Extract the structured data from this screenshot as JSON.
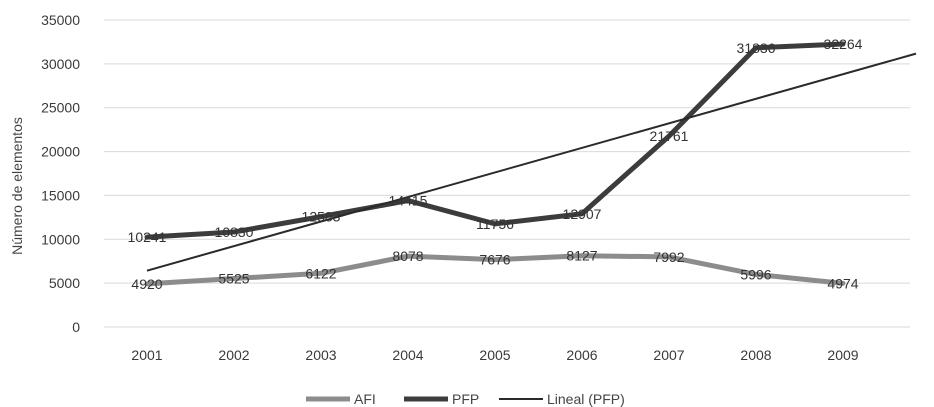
{
  "chart_data": {
    "type": "line",
    "categories": [
      "2001",
      "2002",
      "2003",
      "2004",
      "2005",
      "2006",
      "2007",
      "2008",
      "2009"
    ],
    "series": [
      {
        "name": "AFI",
        "values": [
          4920,
          5525,
          6122,
          8078,
          7676,
          8127,
          7992,
          5996,
          4974
        ],
        "color": "#8c8c8c"
      },
      {
        "name": "PFP",
        "values": [
          10241,
          10830,
          12583,
          14415,
          11756,
          12907,
          21761,
          31836,
          32264
        ],
        "color": "#3c3c3c"
      }
    ],
    "trendline": {
      "name": "Lineal (PFP)",
      "of": "PFP",
      "color": "#2a2a2a"
    },
    "title": "",
    "xlabel": "",
    "ylabel": "Número de elementos",
    "ylim": [
      0,
      35000
    ],
    "yticks": [
      0,
      5000,
      10000,
      15000,
      20000,
      25000,
      30000,
      35000
    ],
    "grid": true,
    "legend": "bottom"
  }
}
